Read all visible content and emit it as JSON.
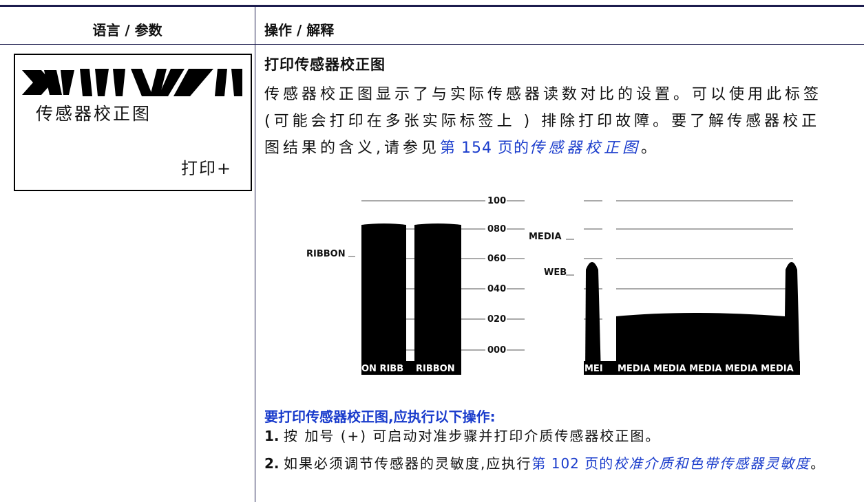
{
  "header": {
    "col1": "语言 / 参数",
    "col2": "操作 / 解释"
  },
  "display": {
    "line1": "传感器校正图",
    "line2": "打印+"
  },
  "section": {
    "title": "打印传感器校正图",
    "paragraph": [
      "传感器校正图显示了与实际传感器读数对比的设置。可以使用此标签 (可能会打印在多张实际标签上 ) 排除打印故障。要了解传感器校正图结果的含义,请参见",
      "第 154 页的",
      "传感器校正图",
      "。"
    ],
    "figure": {
      "scale": [
        "100",
        "080",
        "060",
        "040",
        "020",
        "000"
      ],
      "ribbon_label": "RIBBON",
      "media_label": "MEDIA",
      "web_label": "WEB",
      "ribbon_band": [
        "ON RIBB",
        "RIBBON"
      ],
      "media_band": [
        "MEI",
        "MEDIA MEDIA MEDIA MEDIA MEDIA"
      ]
    },
    "procedure_title": "要打印传感器校正图,应执行以下操作:",
    "steps": [
      {
        "number": "1.",
        "text": [
          "按 加号 (+) 可启动对准步骤并打印介质传感器校正图。"
        ]
      },
      {
        "number": "2.",
        "text": [
          "如果必须调节传感器的灵敏度,应执行",
          "第 102 页的",
          "校准介质和色带传感器灵敏度",
          "。"
        ]
      }
    ]
  }
}
